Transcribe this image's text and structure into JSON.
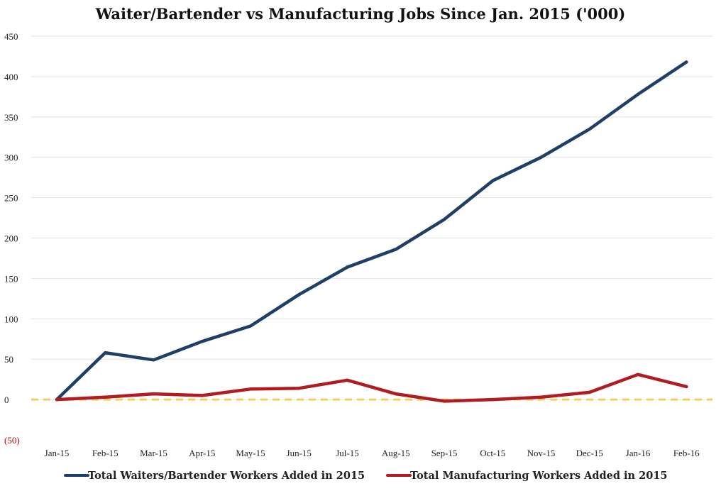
{
  "chart_data": {
    "type": "line",
    "title": "Waiter/Bartender vs Manufacturing Jobs Since Jan. 2015 ('000)",
    "xlabel": "",
    "ylabel": "",
    "categories": [
      "Jan-15",
      "Feb-15",
      "Mar-15",
      "Apr-15",
      "May-15",
      "Jun-15",
      "Jul-15",
      "Aug-15",
      "Sep-15",
      "Oct-15",
      "Nov-15",
      "Dec-15",
      "Jan-16",
      "Feb-16"
    ],
    "ylim": [
      -50,
      450
    ],
    "yticks": [
      450,
      400,
      350,
      300,
      250,
      200,
      150,
      100,
      50,
      0,
      -50
    ],
    "ytick_labels": [
      "450",
      "400",
      "350",
      "300",
      "250",
      "200",
      "150",
      "100",
      "50",
      "0",
      "(50)"
    ],
    "grid": true,
    "reference_line": {
      "value": 0,
      "color": "#f0d060",
      "style": "dashed"
    },
    "legend_position": "bottom",
    "series": [
      {
        "name": "Total Waiters/Bartender Workers Added in 2015",
        "color": "#1f3f66",
        "values": [
          0,
          58,
          49,
          72,
          91,
          130,
          164,
          186,
          223,
          271,
          300,
          335,
          378,
          418
        ]
      },
      {
        "name": "Total Manufacturing Workers Added in 2015",
        "color": "#b01c22",
        "values": [
          0,
          3,
          7,
          5,
          13,
          14,
          24,
          7,
          -2,
          0,
          3,
          9,
          31,
          16
        ]
      }
    ]
  }
}
